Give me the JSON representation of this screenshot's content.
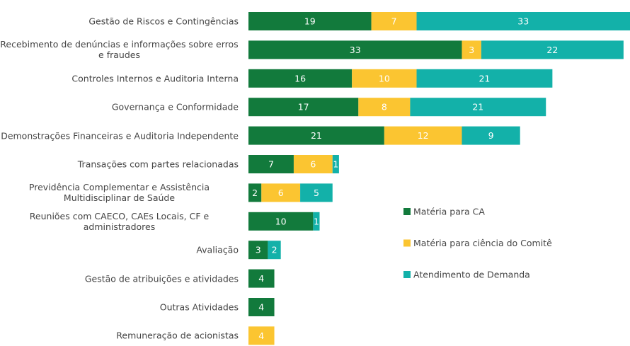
{
  "chart_data": {
    "type": "stacked-bar-horizontal",
    "categories": [
      "Gestão de Riscos e Contingências",
      "Recebimento de denúncias e informações sobre erros e fraudes",
      "Controles Internos e Auditoria Interna",
      "Governança e Conformidade",
      "Demonstrações Financeiras e Auditoria Independente",
      "Transações com partes relacionadas",
      "Previdência Complementar e Assistência Multidisciplinar de Saúde",
      "Reuniões com CAECO, CAEs Locais, CF e administradores",
      "Avaliação",
      "Gestão de atribuições e atividades",
      "Outras Atividades",
      "Remuneração de acionistas"
    ],
    "series": [
      {
        "name": "Matéria para CA",
        "color": "#127a3c",
        "values": [
          19,
          33,
          16,
          17,
          21,
          7,
          2,
          10,
          3,
          4,
          4,
          null
        ]
      },
      {
        "name": "Matéria para ciência do Comitê",
        "color": "#fbc531",
        "values": [
          7,
          3,
          10,
          8,
          12,
          6,
          6,
          null,
          null,
          null,
          null,
          4
        ]
      },
      {
        "name": "Atendimento de Demanda",
        "color": "#13b1a9",
        "values": [
          33,
          22,
          21,
          21,
          9,
          1,
          5,
          1,
          2,
          null,
          null,
          null
        ]
      }
    ],
    "legend": "right"
  }
}
